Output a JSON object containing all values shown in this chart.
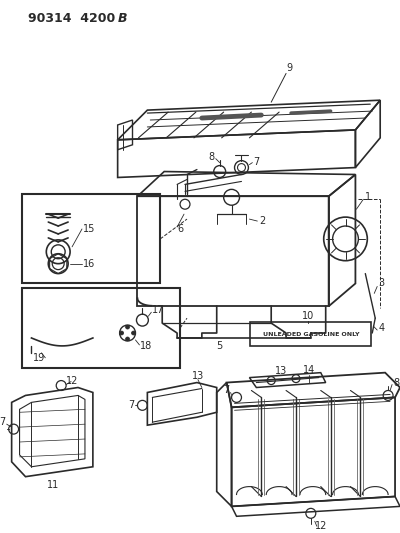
{
  "bg_color": "#ffffff",
  "line_color": "#2a2a2a",
  "fig_width": 4.0,
  "fig_height": 5.33,
  "dpi": 100,
  "header": "90314  4200B",
  "unlead_label": "UNLEADED GASOLINE ONLY"
}
